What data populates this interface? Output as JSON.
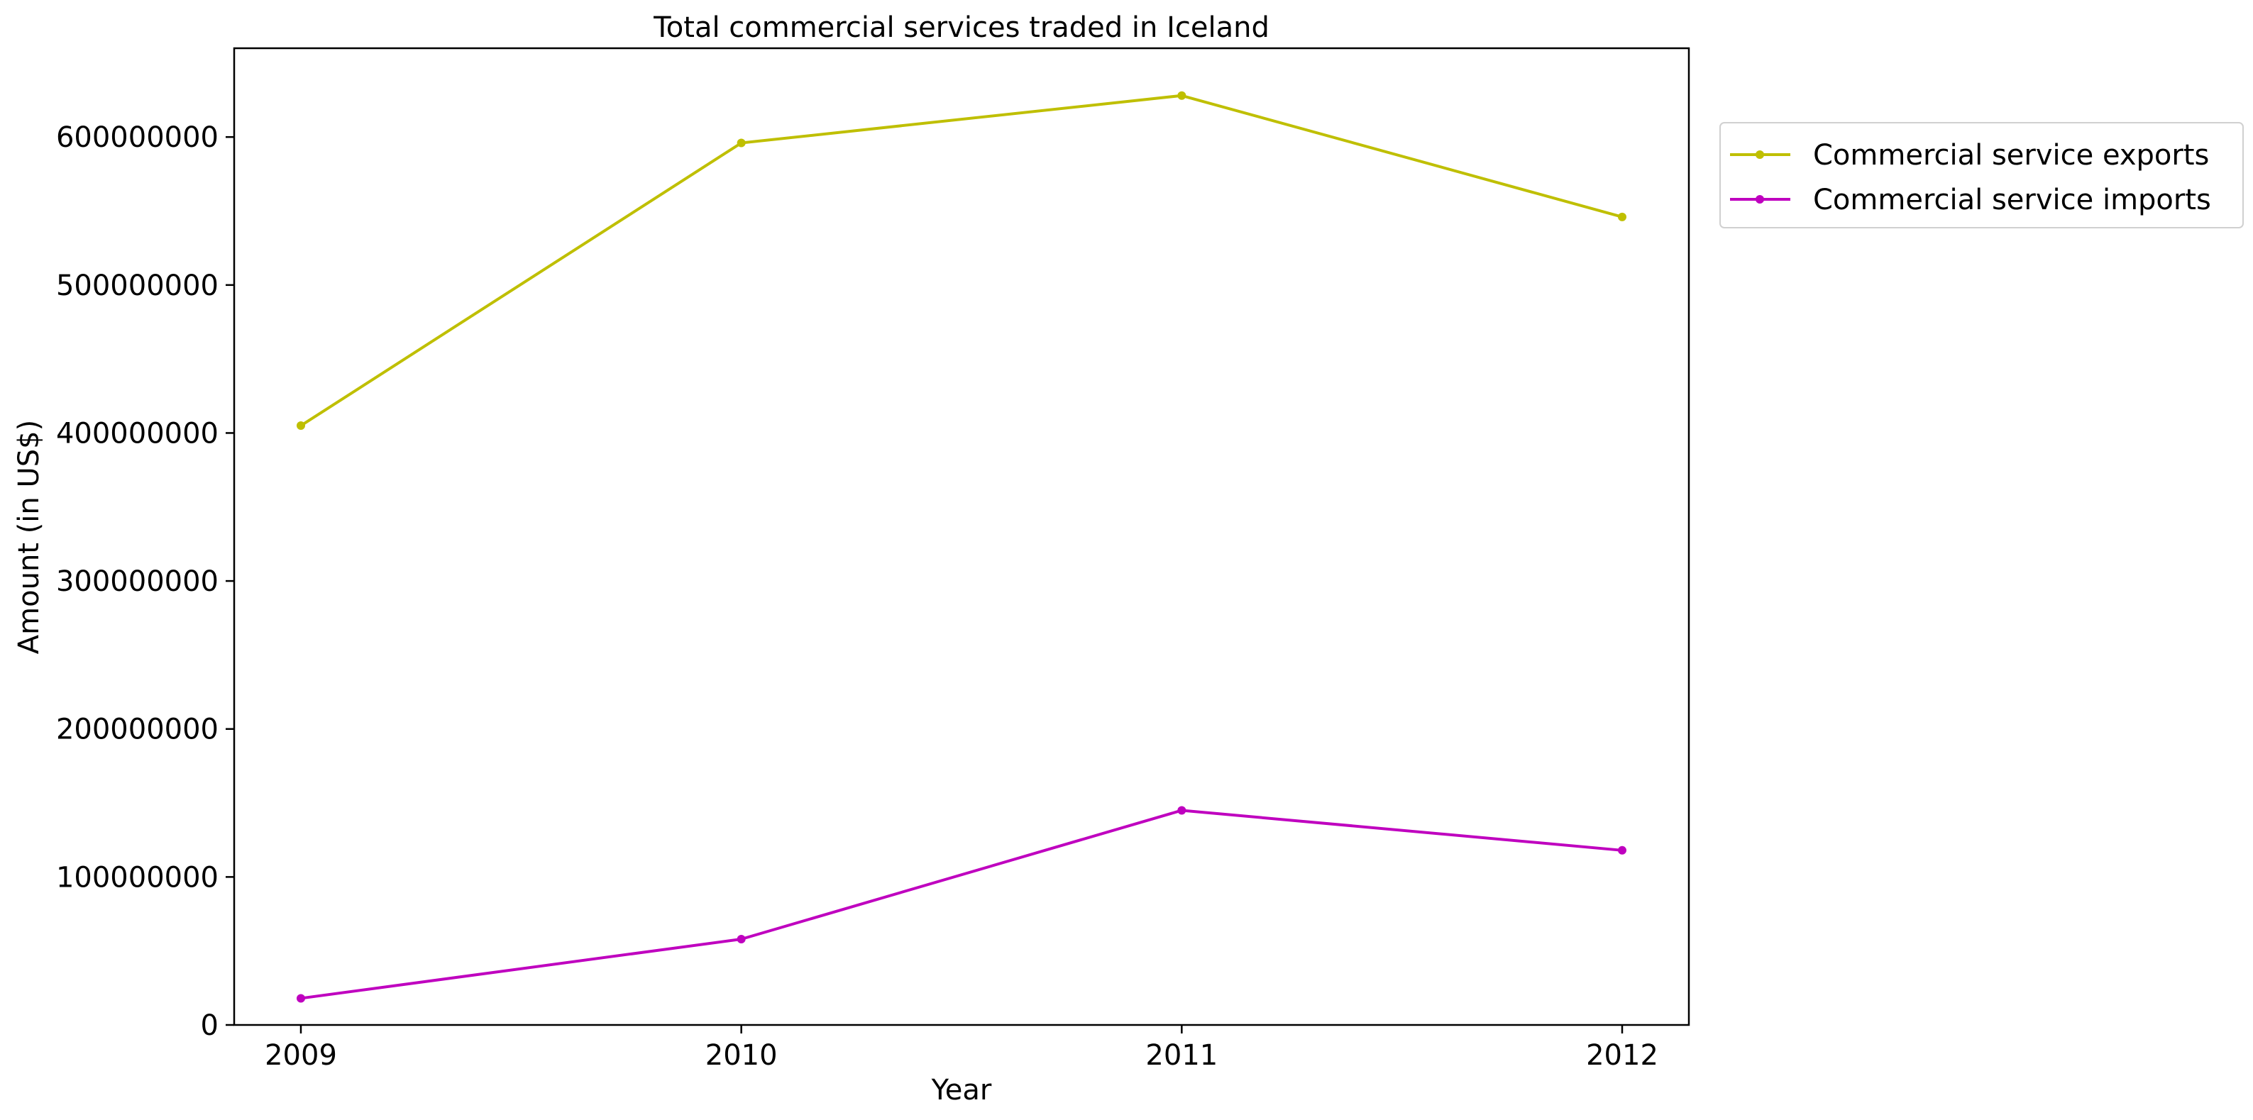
{
  "chart_data": {
    "type": "line",
    "title": "Total commercial services traded in Iceland",
    "xlabel": "Year",
    "ylabel": "Amount (in US$)",
    "x": [
      2009,
      2010,
      2011,
      2012
    ],
    "x_tick_labels": [
      "2009",
      "2010",
      "2011",
      "2012"
    ],
    "ylim": [
      0,
      660000000
    ],
    "y_ticks": [
      0,
      100000000,
      200000000,
      300000000,
      400000000,
      500000000,
      600000000
    ],
    "y_tick_labels": [
      "0",
      "100000000",
      "200000000",
      "300000000",
      "400000000",
      "500000000",
      "600000000"
    ],
    "grid": false,
    "legend_position": "outside-top-right",
    "series": [
      {
        "name": "Commercial service exports",
        "color": "#bfbf00",
        "values": [
          405000000,
          596000000,
          628000000,
          546000000
        ]
      },
      {
        "name": "Commercial service imports",
        "color": "#bf00bf",
        "values": [
          18000000,
          58000000,
          145000000,
          118000000
        ]
      }
    ]
  }
}
